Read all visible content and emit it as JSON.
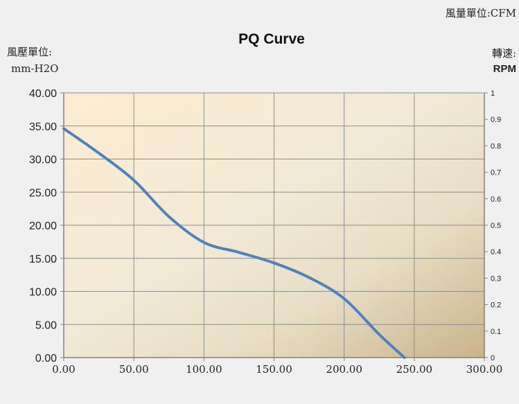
{
  "chart_data": {
    "type": "line",
    "title": "PQ Curve",
    "x_unit_label": "風量單位:CFM",
    "y_unit_label_line1": "風壓單位:",
    "y_unit_label_line2": "mm-H2O",
    "y2_unit_label_line1": "轉速:",
    "y2_unit_label_line2": "RPM",
    "xlim": [
      0,
      300
    ],
    "ylim": [
      0,
      40
    ],
    "y2lim": [
      0,
      1
    ],
    "x_ticks": [
      "0.00",
      "50.00",
      "100.00",
      "150.00",
      "200.00",
      "250.00",
      "300.00"
    ],
    "y_ticks": [
      "0.00",
      "5.00",
      "10.00",
      "15.00",
      "20.00",
      "25.00",
      "30.00",
      "35.00",
      "40.00"
    ],
    "y2_ticks": [
      "0",
      "0.1",
      "0.2",
      "0.3",
      "0.4",
      "0.5",
      "0.6",
      "0.7",
      "0.8",
      "0.9",
      "1"
    ],
    "grid": true,
    "series": [
      {
        "color": "#4f81bd",
        "x": [
          0,
          25,
          50,
          75,
          100,
          125,
          150,
          175,
          200,
          225,
          243
        ],
        "y": [
          34.6,
          30.9,
          26.8,
          21.3,
          17.4,
          15.9,
          14.3,
          12.1,
          8.9,
          3.5,
          0
        ]
      }
    ]
  }
}
